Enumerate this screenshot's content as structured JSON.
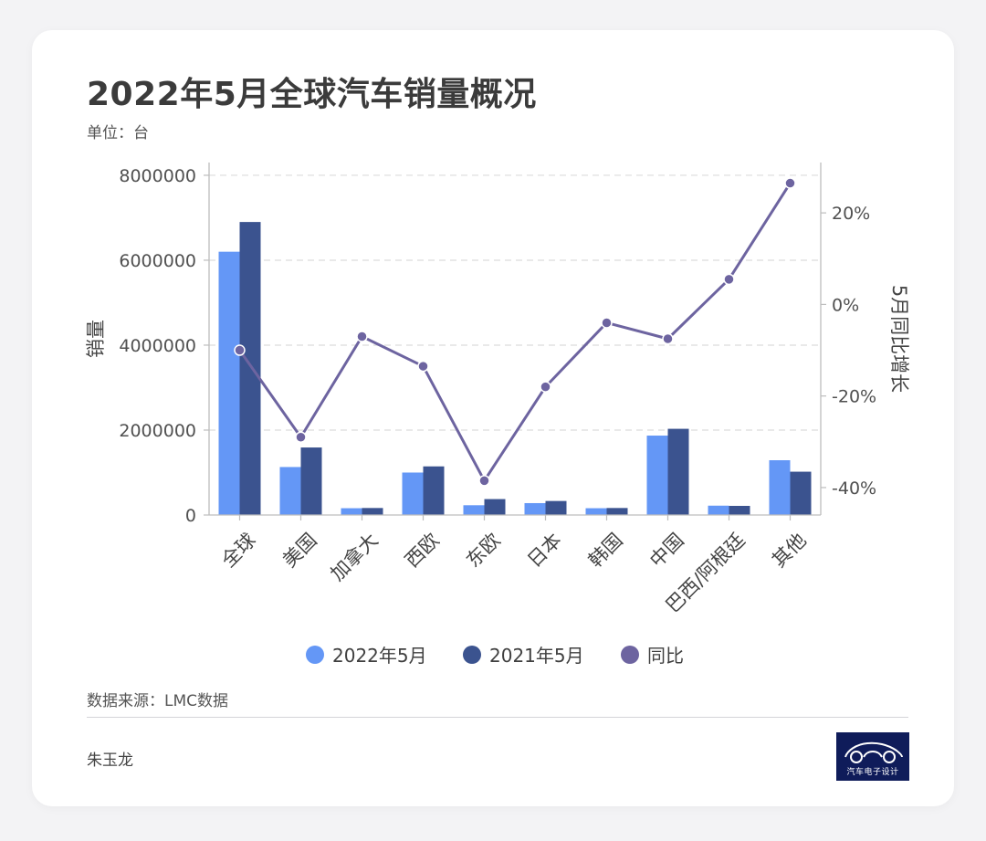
{
  "title": "2022年5月全球汽车销量概况",
  "unit": "单位：台",
  "source": "数据来源：LMC数据",
  "author": "朱玉龙",
  "logo": {
    "text": "汽车电子设计",
    "icon": "car-silhouette-icon"
  },
  "colors": {
    "series_2022": "#6497f6",
    "series_2021": "#3b538f",
    "yoy": "#6d64a0",
    "background": "#f3f3f5",
    "card": "#ffffff"
  },
  "chart_data": {
    "type": "bar",
    "title": "2022年5月全球汽车销量概况",
    "subtitle": "单位：台",
    "categories": [
      "全球",
      "美国",
      "加拿大",
      "西欧",
      "东欧",
      "日本",
      "韩国",
      "中国",
      "巴西/阿根廷",
      "其他"
    ],
    "series": [
      {
        "name": "2022年5月",
        "type": "bar",
        "values": [
          6200000,
          1130000,
          160000,
          1000000,
          230000,
          280000,
          160000,
          1870000,
          220000,
          1290000
        ]
      },
      {
        "name": "2021年5月",
        "type": "bar",
        "values": [
          6900000,
          1590000,
          165000,
          1145000,
          375000,
          330000,
          165000,
          2030000,
          215000,
          1020000
        ]
      },
      {
        "name": "同比",
        "type": "line",
        "axis": "right",
        "values": [
          -10,
          -29,
          -7,
          -13.5,
          -38.5,
          -18,
          -4,
          -7.5,
          5.5,
          26.5
        ]
      }
    ],
    "ylabel": "销量",
    "ylabel_right": "5月同比增长",
    "ylim": [
      0,
      8300000
    ],
    "ylim_right": [
      -46,
      31
    ],
    "yticks": [
      "0",
      "2000000",
      "4000000",
      "6000000",
      "8000000"
    ],
    "yticks_right": [
      "-40%",
      "-20%",
      "0%",
      "20%"
    ],
    "ytick_values": [
      0,
      2000000,
      4000000,
      6000000,
      8000000
    ],
    "ytick_values_right": [
      -40,
      -20,
      0,
      20
    ],
    "grid": "horizontal-dashed",
    "legend": "bottom-center"
  }
}
